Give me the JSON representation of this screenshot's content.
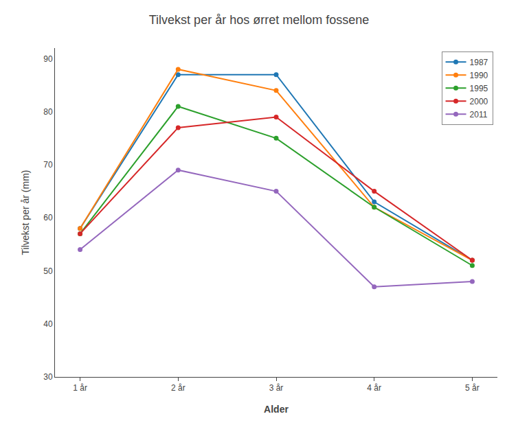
{
  "chart_data": {
    "type": "line",
    "title": "Tilvekst per år hos ørret mellom fossene",
    "xlabel": "Alder",
    "ylabel": "Tilvekst per år (mm)",
    "categories": [
      "1 år",
      "2 år",
      "3 år",
      "4 år",
      "5 år"
    ],
    "series": [
      {
        "name": "1987",
        "values": [
          58,
          87,
          87,
          63,
          52
        ]
      },
      {
        "name": "1990",
        "values": [
          58,
          88,
          84,
          62,
          52
        ]
      },
      {
        "name": "1995",
        "values": [
          57,
          81,
          75,
          62,
          51
        ]
      },
      {
        "name": "2000",
        "values": [
          57,
          77,
          79,
          65,
          52
        ]
      },
      {
        "name": "2011",
        "values": [
          54,
          69,
          65,
          47,
          48
        ]
      }
    ],
    "ylim": [
      30,
      92
    ],
    "yticks": [
      30,
      40,
      50,
      60,
      70,
      80,
      90
    ],
    "grid": false,
    "legend": "upper right",
    "marker": "circle",
    "line_style": "solid"
  }
}
